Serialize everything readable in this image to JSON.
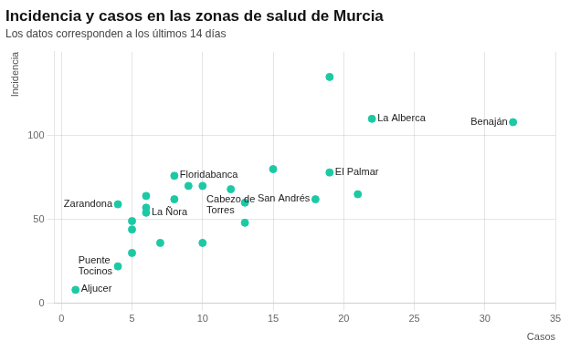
{
  "chart_data": {
    "type": "scatter",
    "title": "Incidencia y casos en las zonas de salud de Murcia",
    "subtitle": "Los datos corresponden a los últimos 14 días",
    "xlabel": "Casos",
    "ylabel": "Incidencia",
    "color": "#1DC9A4",
    "x": [
      1,
      4,
      4,
      5,
      5,
      5,
      6,
      6,
      6,
      7,
      8,
      8,
      9,
      10,
      10,
      12,
      13,
      13,
      15,
      18,
      19,
      19,
      21,
      22,
      32
    ],
    "values": [
      8,
      22,
      59,
      30,
      44,
      49,
      54,
      57,
      64,
      36,
      62,
      76,
      70,
      36,
      70,
      68,
      48,
      60,
      80,
      62,
      78,
      135,
      65,
      110,
      108
    ],
    "annotations": [
      {
        "x": 1,
        "y": 8,
        "text": "Aljucer"
      },
      {
        "x": 4,
        "y": 22,
        "text": "Puente\nTocinos"
      },
      {
        "x": 4,
        "y": 59,
        "text": "Zarandona"
      },
      {
        "x": 6,
        "y": 54,
        "text": "La Ñora"
      },
      {
        "x": 8,
        "y": 76,
        "text": "Floridabanca"
      },
      {
        "x": 12,
        "y": 68,
        "text": "Cabezo de\nTorres"
      },
      {
        "x": 18,
        "y": 62,
        "text": "San Andrés"
      },
      {
        "x": 19,
        "y": 78,
        "text": "El Palmar"
      },
      {
        "x": 22,
        "y": 110,
        "text": "La Alberca"
      },
      {
        "x": 32,
        "y": 108,
        "text": "Benaján"
      }
    ],
    "xlim": [
      -0.5,
      35
    ],
    "ylim": [
      0,
      150
    ],
    "xticks": [
      0,
      5,
      10,
      15,
      20,
      25,
      30,
      35
    ],
    "yticks": [
      0,
      50,
      100
    ],
    "grid": true
  }
}
